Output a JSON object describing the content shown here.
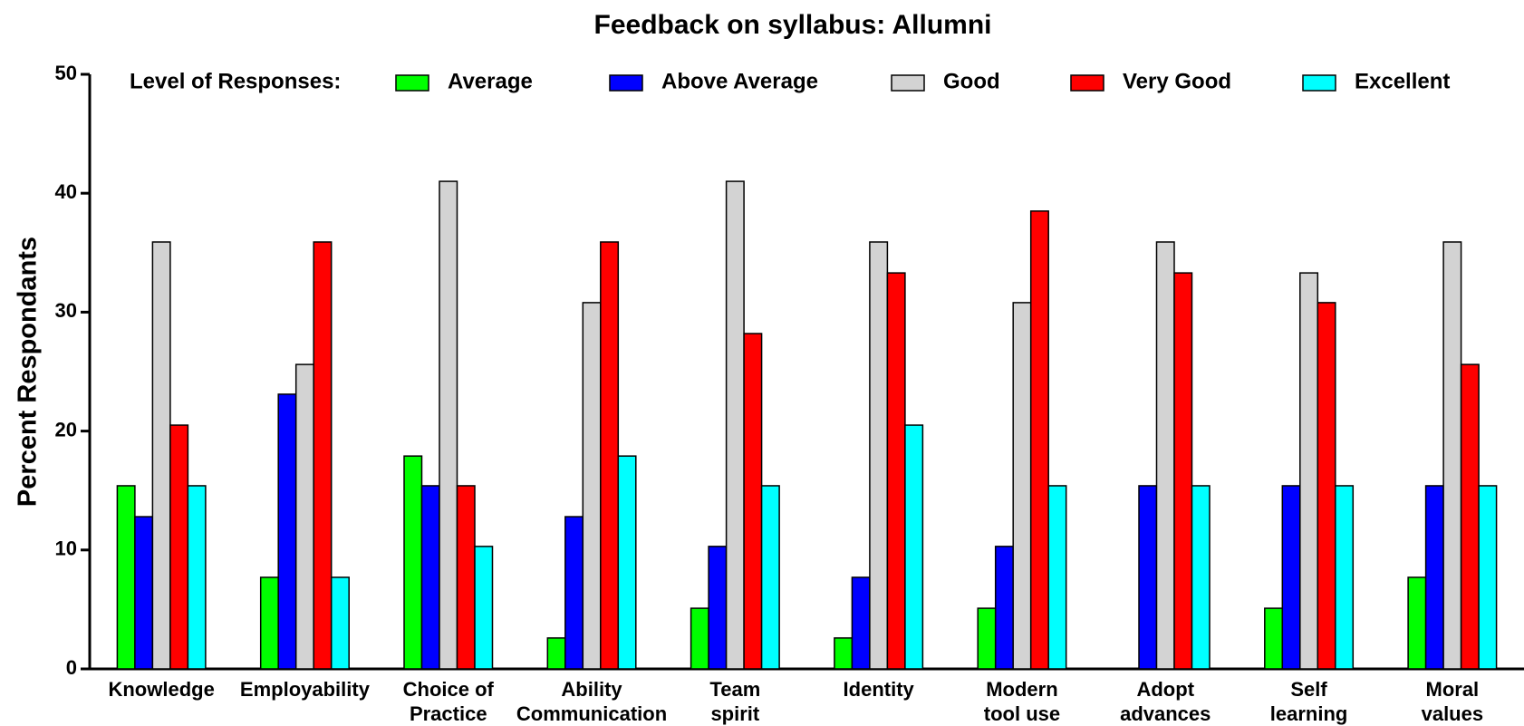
{
  "chart_data": {
    "type": "bar",
    "title": "Feedback on syllabus: Allumni",
    "y_label": "Percent Respondants",
    "legend_title": "Level of Responses:",
    "categories": [
      "Knowledge",
      "Employability",
      "Choice of\nPractice",
      "Ability\nCommunication",
      "Team\nspirit",
      "Identity",
      "Modern\ntool use",
      "Adopt\nadvances",
      "Self\nlearning",
      "Moral\nvalues"
    ],
    "series": [
      {
        "name": "Average",
        "color": "#00ff00",
        "values": [
          15.4,
          7.7,
          17.9,
          2.6,
          5.1,
          2.6,
          5.1,
          0,
          5.1,
          7.7
        ]
      },
      {
        "name": "Above Average",
        "color": "#0000ff",
        "values": [
          12.8,
          23.1,
          15.4,
          12.8,
          10.3,
          7.7,
          10.3,
          15.4,
          15.4,
          15.4
        ]
      },
      {
        "name": "Good",
        "color": "#d3d3d3",
        "values": [
          35.9,
          25.6,
          41.0,
          30.8,
          41.0,
          35.9,
          30.8,
          35.9,
          33.3,
          35.9
        ]
      },
      {
        "name": "Very Good",
        "color": "#ff0000",
        "values": [
          20.5,
          35.9,
          15.4,
          35.9,
          28.2,
          33.3,
          38.5,
          33.3,
          30.8,
          25.6
        ]
      },
      {
        "name": "Excellent",
        "color": "#00ffff",
        "values": [
          15.4,
          7.7,
          10.3,
          17.9,
          15.4,
          20.5,
          15.4,
          15.4,
          15.4,
          15.4
        ]
      }
    ],
    "ylim": [
      0,
      50
    ],
    "yticks": [
      0,
      10,
      20,
      30,
      40,
      50
    ],
    "grid": false,
    "legend": "top"
  }
}
